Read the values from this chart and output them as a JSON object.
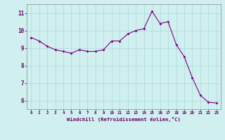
{
  "x": [
    0,
    1,
    2,
    3,
    4,
    5,
    6,
    7,
    8,
    9,
    10,
    11,
    12,
    13,
    14,
    15,
    16,
    17,
    18,
    19,
    20,
    21,
    22,
    23
  ],
  "y": [
    9.6,
    9.4,
    9.1,
    8.9,
    8.8,
    8.7,
    8.9,
    8.8,
    8.8,
    8.9,
    9.4,
    9.4,
    9.8,
    10.0,
    10.1,
    11.1,
    10.4,
    10.5,
    9.2,
    8.5,
    7.3,
    6.3,
    5.9,
    5.85
  ],
  "line_color": "#800080",
  "marker": "D",
  "marker_size": 1.5,
  "bg_color": "#d0f0f0",
  "grid_color": "#a8d8d8",
  "xlabel": "Windchill (Refroidissement éolien,°C)",
  "ylim": [
    5.5,
    11.5
  ],
  "xlim": [
    -0.5,
    23.5
  ],
  "yticks": [
    6,
    7,
    8,
    9,
    10,
    11
  ],
  "xticks": [
    0,
    1,
    2,
    3,
    4,
    5,
    6,
    7,
    8,
    9,
    10,
    11,
    12,
    13,
    14,
    15,
    16,
    17,
    18,
    19,
    20,
    21,
    22,
    23
  ]
}
